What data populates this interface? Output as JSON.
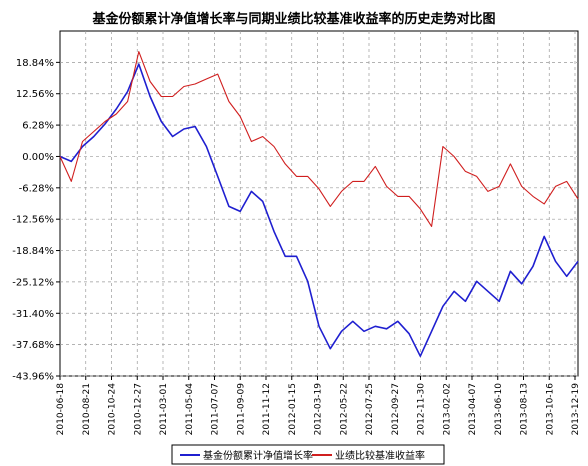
{
  "chart_data": {
    "type": "line",
    "title": "基金份额累计净值增长率与同期业绩比较基准收益率的历史走势对比图",
    "xlabel": "",
    "ylabel": "",
    "y_ticks": [
      "18.84%",
      "12.56%",
      "6.28%",
      "0.00%",
      "-6.28%",
      "-12.56%",
      "-18.84%",
      "-25.12%",
      "-31.40%",
      "-37.68%",
      "-43.96%"
    ],
    "ylim": [
      -43.96,
      25.12
    ],
    "x_ticks": [
      "2010-06-18",
      "2010-08-21",
      "2010-10-24",
      "2010-12-27",
      "2011-03-01",
      "2011-05-04",
      "2011-07-07",
      "2011-09-09",
      "2011-11-12",
      "2012-01-15",
      "2012-03-19",
      "2012-05-22",
      "2012-07-25",
      "2012-09-27",
      "2012-11-30",
      "2013-02-02",
      "2013-04-07",
      "2013-06-10",
      "2013-08-13",
      "2013-10-16",
      "2013-12-19"
    ],
    "grid": true,
    "legend_position": "bottom",
    "series": [
      {
        "name": "基金份额累计净值增长率",
        "color": "#1f1fd0",
        "values": [
          0.0,
          -1.0,
          2.0,
          4.0,
          6.5,
          9.5,
          13.0,
          18.5,
          12.0,
          7.0,
          4.0,
          5.5,
          6.0,
          2.0,
          -4.0,
          -10.0,
          -11.0,
          -7.0,
          -9.0,
          -15.0,
          -20.0,
          -20.0,
          -25.0,
          -34.0,
          -38.5,
          -35.0,
          -33.0,
          -35.0,
          -34.0,
          -34.5,
          -33.0,
          -35.5,
          -40.0,
          -35.0,
          -30.0,
          -27.0,
          -29.0,
          -25.0,
          -27.0,
          -29.0,
          -23.0,
          -25.5,
          -22.0,
          -16.0,
          -21.0,
          -24.0,
          -21.0
        ]
      },
      {
        "name": "业绩比较基准收益率",
        "color": "#d01f1f",
        "values": [
          0.0,
          -5.0,
          3.0,
          5.0,
          7.0,
          8.5,
          11.0,
          21.0,
          15.0,
          12.0,
          12.0,
          14.0,
          14.5,
          15.5,
          16.5,
          11.0,
          8.0,
          3.0,
          4.0,
          2.0,
          -1.5,
          -4.0,
          -4.0,
          -6.5,
          -10.0,
          -7.0,
          -5.0,
          -5.0,
          -2.0,
          -6.0,
          -8.0,
          -8.0,
          -10.5,
          -14.0,
          2.0,
          0.0,
          -3.0,
          -4.0,
          -7.0,
          -6.0,
          -1.5,
          -6.0,
          -8.0,
          -9.5,
          -6.0,
          -5.0,
          -8.5
        ]
      }
    ]
  }
}
